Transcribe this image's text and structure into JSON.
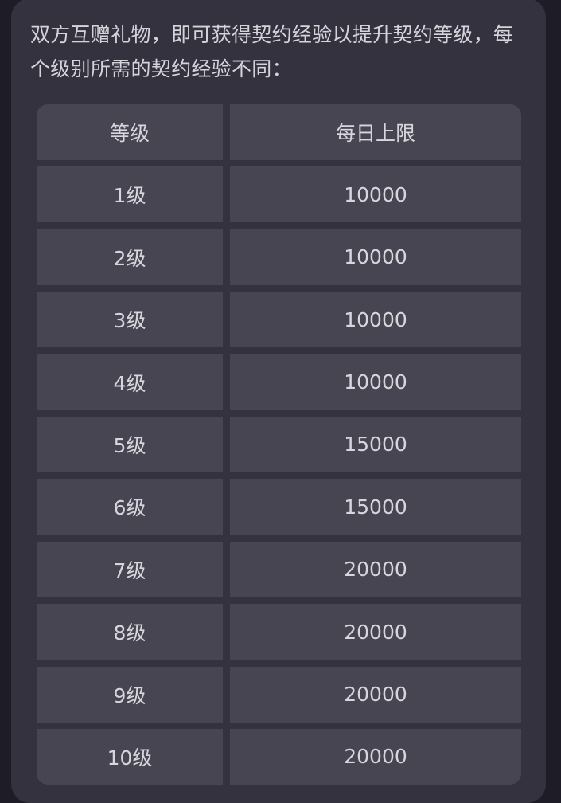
{
  "intro": "双方互赠礼物，即可获得契约经验以提升契约等级，每个级别所需的契约经验不同：",
  "table": {
    "headers": [
      "等级",
      "每日上限"
    ],
    "rows": [
      [
        "1级",
        "10000"
      ],
      [
        "2级",
        "10000"
      ],
      [
        "3级",
        "10000"
      ],
      [
        "4级",
        "10000"
      ],
      [
        "5级",
        "15000"
      ],
      [
        "6级",
        "15000"
      ],
      [
        "7级",
        "20000"
      ],
      [
        "8级",
        "20000"
      ],
      [
        "9级",
        "20000"
      ],
      [
        "10级",
        "20000"
      ]
    ]
  }
}
